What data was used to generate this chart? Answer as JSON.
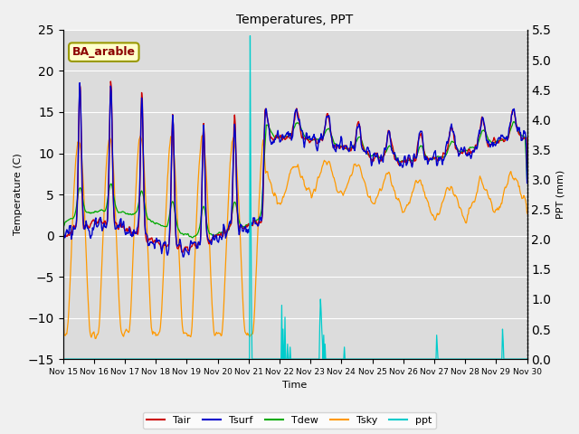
{
  "title": "Temperatures, PPT",
  "xlabel": "Time",
  "ylabel_left": "Temperature (C)",
  "ylabel_right": "PPT (mm)",
  "annotation": "BA_arable",
  "ylim_left": [
    -15,
    25
  ],
  "ylim_right": [
    0.0,
    5.5
  ],
  "yticks_left": [
    -15,
    -10,
    -5,
    0,
    5,
    10,
    15,
    20,
    25
  ],
  "yticks_right": [
    0.0,
    0.5,
    1.0,
    1.5,
    2.0,
    2.5,
    3.0,
    3.5,
    4.0,
    4.5,
    5.0,
    5.5
  ],
  "colors": {
    "Tair": "#cc0000",
    "Tsurf": "#0000cc",
    "Tdew": "#00aa00",
    "Tsky": "#ff9900",
    "ppt": "#00cccc"
  },
  "bg_color": "#dcdcdc",
  "fig_bg_color": "#f0f0f0",
  "x_tick_labels": [
    "Nov 15",
    "Nov 16",
    "Nov 17",
    "Nov 18",
    "Nov 19",
    "Nov 20",
    "Nov 21",
    "Nov 22",
    "Nov 23",
    "Nov 24",
    "Nov 25",
    "Nov 26",
    "Nov 27",
    "Nov 28",
    "Nov 29",
    "Nov 30"
  ]
}
